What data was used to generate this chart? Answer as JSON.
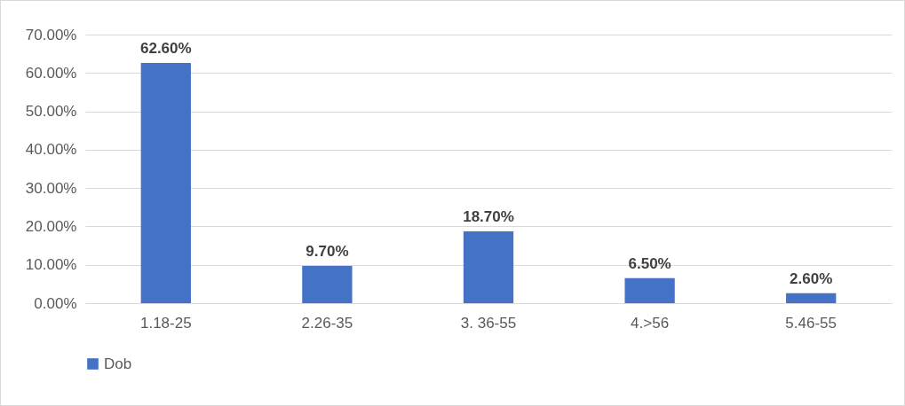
{
  "chart_data": {
    "type": "bar",
    "categories": [
      "1.18-25",
      "2.26-35",
      "3. 36-55",
      "4.>56",
      "5.46-55"
    ],
    "series": [
      {
        "name": "Dob",
        "color": "#4472c4",
        "values": [
          62.6,
          9.7,
          18.7,
          6.5,
          2.6
        ],
        "value_labels": [
          "62.60%",
          "9.70%",
          "18.70%",
          "6.50%",
          "2.60%"
        ]
      }
    ],
    "ylim": [
      0,
      70
    ],
    "yticks": [
      {
        "value": 0,
        "label": "0.00%"
      },
      {
        "value": 10,
        "label": "10.00%"
      },
      {
        "value": 20,
        "label": "20.00%"
      },
      {
        "value": 30,
        "label": "30.00%"
      },
      {
        "value": 40,
        "label": "40.00%"
      },
      {
        "value": 50,
        "label": "50.00%"
      },
      {
        "value": 60,
        "label": "60.00%"
      },
      {
        "value": 70,
        "label": "70.00%"
      }
    ],
    "grid": "y",
    "legend": "bottom"
  }
}
